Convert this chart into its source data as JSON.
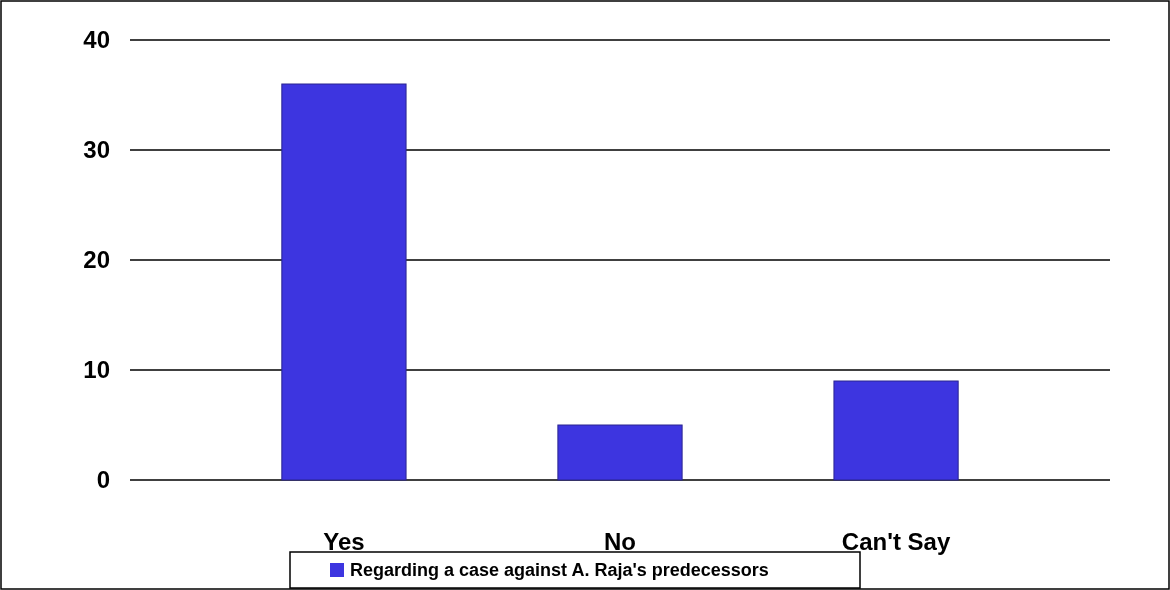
{
  "chart_data": {
    "type": "bar",
    "categories": [
      "Yes",
      "No",
      "Can't Say"
    ],
    "series": [
      {
        "name": "Regarding a case against A. Raja's predecessors",
        "color": "#3d35e0",
        "values": [
          36,
          5,
          9
        ]
      }
    ],
    "ylim": [
      0,
      40
    ],
    "yticks": [
      0,
      10,
      20,
      30,
      40
    ],
    "grid": "y",
    "legend": "bottom"
  }
}
